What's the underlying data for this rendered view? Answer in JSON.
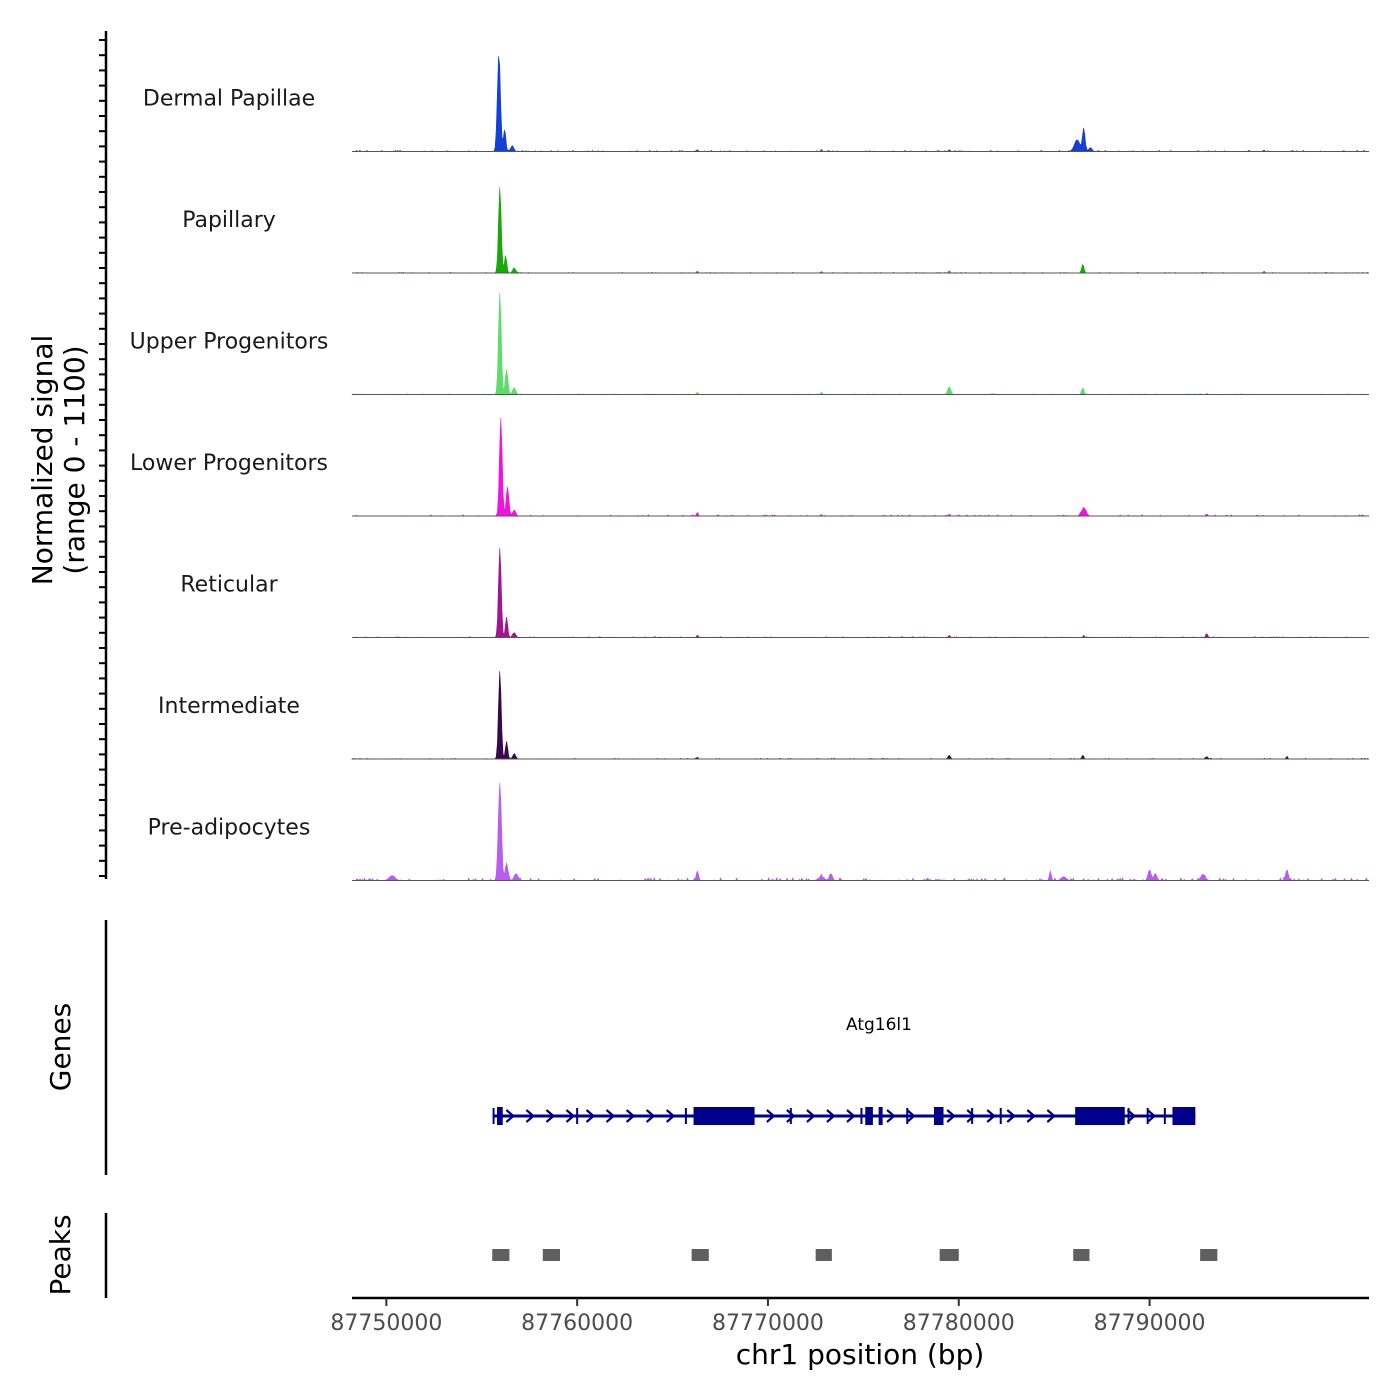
{
  "chart_data": {
    "type": "area",
    "title": "",
    "ylabel_line1": "Normalized signal",
    "ylabel_line2": "(range 0 - 1100)",
    "xlabel": "chr1 position (bp)",
    "xlim": [
      87748200,
      87801500
    ],
    "ylim": [
      0,
      1100
    ],
    "xticks": [
      87750000,
      87760000,
      87770000,
      87780000,
      87790000
    ],
    "xtick_labels": [
      "87750000",
      "87760000",
      "87770000",
      "87780000",
      "87790000"
    ],
    "tracks": [
      {
        "name": "Dermal Papillae",
        "color": "#1540d8",
        "peaks": [
          [
            87755900,
            1000,
            80
          ],
          [
            87756200,
            230,
            60
          ],
          [
            87756600,
            60,
            80
          ],
          [
            87766300,
            20,
            40
          ],
          [
            87772800,
            20,
            40
          ],
          [
            87779500,
            22,
            40
          ],
          [
            87786200,
            120,
            140
          ],
          [
            87786550,
            230,
            70
          ],
          [
            87786900,
            40,
            80
          ],
          [
            87796000,
            15,
            40
          ]
        ],
        "noise": 6
      },
      {
        "name": "Papillary",
        "color": "#18a80c",
        "peaks": [
          [
            87755950,
            880,
            70
          ],
          [
            87756250,
            180,
            60
          ],
          [
            87756700,
            50,
            80
          ],
          [
            87766300,
            20,
            40
          ],
          [
            87772800,
            15,
            40
          ],
          [
            87779500,
            25,
            40
          ],
          [
            87786500,
            90,
            60
          ],
          [
            87796000,
            20,
            40
          ]
        ],
        "noise": 4
      },
      {
        "name": "Upper Progenitors",
        "color": "#5ddc6c",
        "peaks": [
          [
            87755950,
            1050,
            70
          ],
          [
            87756300,
            250,
            70
          ],
          [
            87756700,
            70,
            80
          ],
          [
            87766300,
            25,
            40
          ],
          [
            87772800,
            20,
            40
          ],
          [
            87779500,
            80,
            80
          ],
          [
            87786500,
            70,
            60
          ],
          [
            87793000,
            15,
            40
          ]
        ],
        "noise": 4
      },
      {
        "name": "Lower Progenitors",
        "color": "#ee14dd",
        "peaks": [
          [
            87756000,
            1000,
            70
          ],
          [
            87756350,
            300,
            70
          ],
          [
            87756700,
            60,
            80
          ],
          [
            87766300,
            40,
            40
          ],
          [
            87772800,
            15,
            40
          ],
          [
            87779500,
            20,
            40
          ],
          [
            87786550,
            80,
            120
          ],
          [
            87793000,
            20,
            40
          ]
        ],
        "noise": 6
      },
      {
        "name": "Reticular",
        "color": "#a31493",
        "peaks": [
          [
            87755950,
            920,
            70
          ],
          [
            87756300,
            210,
            60
          ],
          [
            87756700,
            50,
            80
          ],
          [
            87766300,
            25,
            40
          ],
          [
            87779500,
            25,
            40
          ],
          [
            87786550,
            25,
            40
          ],
          [
            87793000,
            40,
            50
          ]
        ],
        "noise": 4
      },
      {
        "name": "Intermediate",
        "color": "#35094c",
        "peaks": [
          [
            87755950,
            900,
            70
          ],
          [
            87756300,
            180,
            60
          ],
          [
            87756700,
            50,
            80
          ],
          [
            87766300,
            20,
            40
          ],
          [
            87779500,
            40,
            60
          ],
          [
            87786500,
            40,
            50
          ],
          [
            87793000,
            25,
            60
          ],
          [
            87797200,
            30,
            40
          ]
        ],
        "noise": 4
      },
      {
        "name": "Pre-adipocytes",
        "color": "#b85ded",
        "peaks": [
          [
            87755950,
            1000,
            80
          ],
          [
            87756300,
            180,
            70
          ],
          [
            87756800,
            70,
            100
          ],
          [
            87750300,
            50,
            150
          ],
          [
            87766300,
            100,
            60
          ],
          [
            87772800,
            40,
            150
          ],
          [
            87773300,
            70,
            80
          ],
          [
            87784800,
            100,
            50
          ],
          [
            87785500,
            40,
            120
          ],
          [
            87790000,
            110,
            80
          ],
          [
            87790300,
            70,
            80
          ],
          [
            87792800,
            60,
            120
          ],
          [
            87797200,
            110,
            70
          ]
        ],
        "noise": 14
      }
    ],
    "genes": {
      "label": "Genes",
      "color": "#00008b",
      "name": "Atg16l1",
      "start": 87755600,
      "end": 87792400,
      "exons": [
        [
          87755800,
          87756100
        ],
        [
          87766100,
          87769300
        ],
        [
          87775100,
          87775500
        ],
        [
          87775800,
          87776000
        ],
        [
          87778700,
          87779200
        ],
        [
          87786100,
          87788700
        ],
        [
          87791200,
          87792400
        ]
      ],
      "marks": [
        87755620,
        87760000,
        87765700,
        87771200,
        87774900,
        87777300,
        87780700,
        87782200,
        87788900,
        87789900,
        87790800
      ]
    },
    "peaks_track": {
      "label": "Peaks",
      "color": "#5f5f5f",
      "regions": [
        [
          87755550,
          87756450
        ],
        [
          87758200,
          87759100
        ],
        [
          87766000,
          87766900
        ],
        [
          87772500,
          87773350
        ],
        [
          87779000,
          87780000
        ],
        [
          87786000,
          87786850
        ],
        [
          87792650,
          87793550
        ]
      ]
    }
  }
}
